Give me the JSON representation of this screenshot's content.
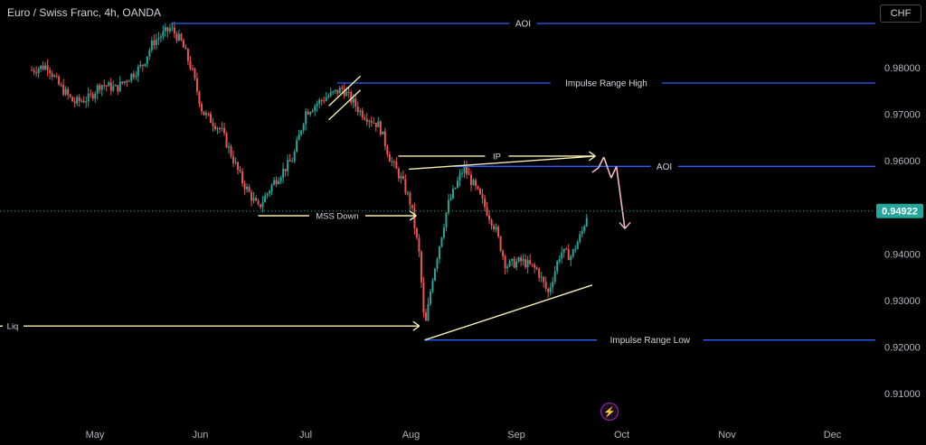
{
  "header": {
    "title": "Euro / Swiss Franc, 4h, OANDA",
    "currency_button": "CHF"
  },
  "colors": {
    "background": "#000000",
    "up_candle": "#26a69a",
    "down_candle": "#ef5350",
    "level_line": "#2962ff",
    "drawing": "#f5eeb0",
    "projection": "#f4b8bf",
    "price_tag": "#26a69a",
    "axis_text": "#b2b5be"
  },
  "chart_data": {
    "type": "candlestick",
    "symbol": "Euro / Swiss Franc",
    "timeframe": "4h",
    "source": "OANDA",
    "y_ticks": [
      "0.98000",
      "0.97000",
      "0.96000",
      "0.95000",
      "0.94000",
      "0.93000",
      "0.92000",
      "0.91000"
    ],
    "y_tick_values": [
      0.98,
      0.97,
      0.96,
      0.95,
      0.94,
      0.93,
      0.92,
      0.91
    ],
    "ylim": [
      0.9035,
      0.9885
    ],
    "x_ticks": [
      "May",
      "Jun",
      "Jul",
      "Aug",
      "Sep",
      "Oct",
      "Nov",
      "Dec"
    ],
    "x_tick_months": [
      0,
      1,
      2,
      3,
      4,
      5,
      6,
      7
    ],
    "xlim_months": [
      -0.6,
      7.6
    ],
    "current_price": "0.94922",
    "current_price_value": 0.94922,
    "price_path": [
      [
        -0.6,
        0.9795
      ],
      [
        -0.45,
        0.9805
      ],
      [
        -0.35,
        0.9765
      ],
      [
        -0.2,
        0.9725
      ],
      [
        -0.05,
        0.9735
      ],
      [
        0.05,
        0.9765
      ],
      [
        0.2,
        0.9755
      ],
      [
        0.35,
        0.9785
      ],
      [
        0.45,
        0.9805
      ],
      [
        0.55,
        0.9855
      ],
      [
        0.72,
        0.9885
      ],
      [
        0.82,
        0.9855
      ],
      [
        0.92,
        0.9795
      ],
      [
        1.02,
        0.9705
      ],
      [
        1.2,
        0.9665
      ],
      [
        1.4,
        0.9555
      ],
      [
        1.55,
        0.9498
      ],
      [
        1.7,
        0.9555
      ],
      [
        1.88,
        0.9605
      ],
      [
        2.0,
        0.9705
      ],
      [
        2.18,
        0.9735
      ],
      [
        2.35,
        0.9755
      ],
      [
        2.52,
        0.9705
      ],
      [
        2.7,
        0.9675
      ],
      [
        2.8,
        0.9605
      ],
      [
        2.92,
        0.9555
      ],
      [
        3.0,
        0.9505
      ],
      [
        3.08,
        0.9395
      ],
      [
        3.13,
        0.9235
      ],
      [
        3.2,
        0.9345
      ],
      [
        3.35,
        0.9505
      ],
      [
        3.5,
        0.9585
      ],
      [
        3.65,
        0.9525
      ],
      [
        3.8,
        0.9455
      ],
      [
        3.9,
        0.9375
      ],
      [
        4.05,
        0.9385
      ],
      [
        4.2,
        0.9365
      ],
      [
        4.3,
        0.9315
      ],
      [
        4.42,
        0.9405
      ],
      [
        4.52,
        0.9395
      ],
      [
        4.62,
        0.9445
      ],
      [
        4.68,
        0.9492
      ]
    ],
    "levels": [
      {
        "label": "AOI",
        "value": 0.9895,
        "x_from": 0.72,
        "x_to": 7.6
      },
      {
        "label": "Impulse Range High",
        "value": 0.9767,
        "x_from": 2.3,
        "x_to": 7.6
      },
      {
        "label": "AOI",
        "value": 0.9588,
        "x_from": 3.4,
        "x_to": 7.6
      },
      {
        "label": "Impulse Range Low",
        "value": 0.9215,
        "x_from": 3.13,
        "x_to": 7.6
      }
    ],
    "annotations": [
      {
        "label": "IP",
        "value": 0.961,
        "x_from": 2.88,
        "x_to": 4.75
      },
      {
        "label": "MSS Down",
        "value": 0.9482,
        "x_from": 1.55,
        "x_to": 3.05
      },
      {
        "label": "Liq",
        "value": 0.9245,
        "x_from": -0.6,
        "x_to": 3.08
      }
    ],
    "grid": false,
    "legend": "none"
  },
  "watermark_icon": "lightning-icon"
}
